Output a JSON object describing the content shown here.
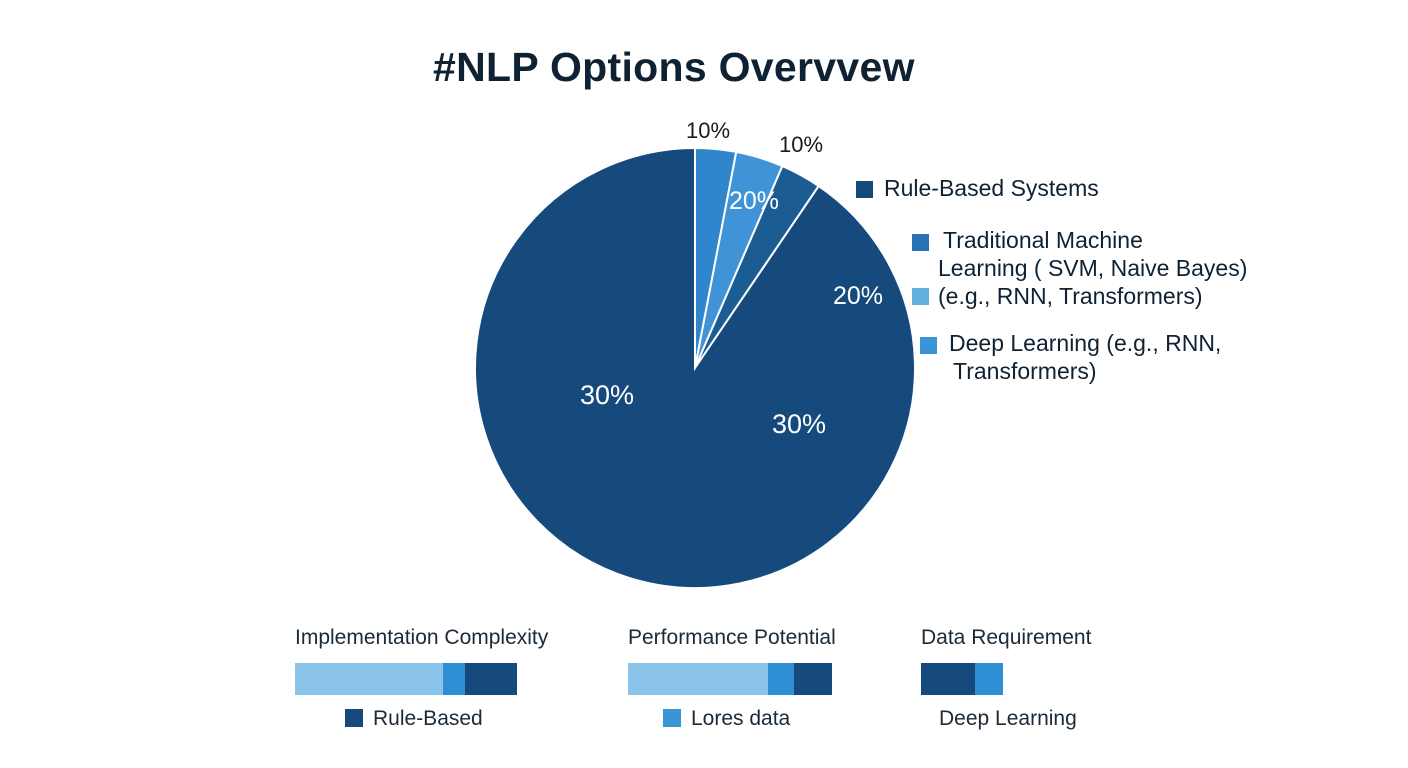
{
  "title": "#NLP Options Overvvew",
  "chart_data": {
    "type": "pie",
    "title": "#NLP Options Overvvew",
    "slices": [
      {
        "value": 90.5,
        "color": "#174a7c",
        "label": ""
      },
      {
        "value": 3.0,
        "color": "#2f86cc",
        "label": ""
      },
      {
        "value": 3.5,
        "color": "#3f93d6",
        "label": ""
      },
      {
        "value": 3.0,
        "color": "#1b5c93",
        "label": ""
      }
    ],
    "data_labels": [
      {
        "text": "10%",
        "color": "#1b1b1b"
      },
      {
        "text": "10%",
        "color": "#1b1b1b"
      },
      {
        "text": "20%",
        "color": "#ffffff"
      },
      {
        "text": "20%",
        "color": "#ffffff"
      },
      {
        "text": "30%",
        "color": "#ffffff"
      },
      {
        "text": "30%",
        "color": "#ffffff"
      }
    ]
  },
  "legend": {
    "rule_based": {
      "label": "Rule-Based Systems",
      "color": "#174a7c"
    },
    "traditional_ml": {
      "line1": "Traditional Machine",
      "line2_bold": "Learning",
      "line2_rest": " ( SVM, Naive Bayes)",
      "color": "#2872b5"
    },
    "eg_rnn": {
      "label": "(e.g., RNN, Transformers)",
      "color": "#62aedf"
    },
    "deep_learning": {
      "bold": "Deep Learning",
      "rest": " (e.g., RNN,",
      "line2": "Transformers)",
      "color": "#3a95d8"
    }
  },
  "metrics": [
    {
      "title": "Implementation Complexity",
      "segments": [
        {
          "share": 0.667,
          "color": "#8ac4eb"
        },
        {
          "share": 0.1,
          "color": "#2e8fd4"
        },
        {
          "share": 0.233,
          "color": "#174a7c"
        }
      ],
      "key_label": "Rule-Based",
      "key_color": "#174a7c"
    },
    {
      "title": "Performance Potential",
      "segments": [
        {
          "share": 0.686,
          "color": "#8ac4eb"
        },
        {
          "share": 0.127,
          "color": "#2e8fd4"
        },
        {
          "share": 0.187,
          "color": "#174a7c"
        }
      ],
      "key_label": "Lores data",
      "key_color": "#3a95d8"
    },
    {
      "title": "Data Requirement",
      "segments": [
        {
          "share": 0.66,
          "color": "#174a7c"
        },
        {
          "share": 0.34,
          "color": "#2e8fd4"
        }
      ],
      "key_label": "Deep Learning",
      "key_color": ""
    }
  ]
}
